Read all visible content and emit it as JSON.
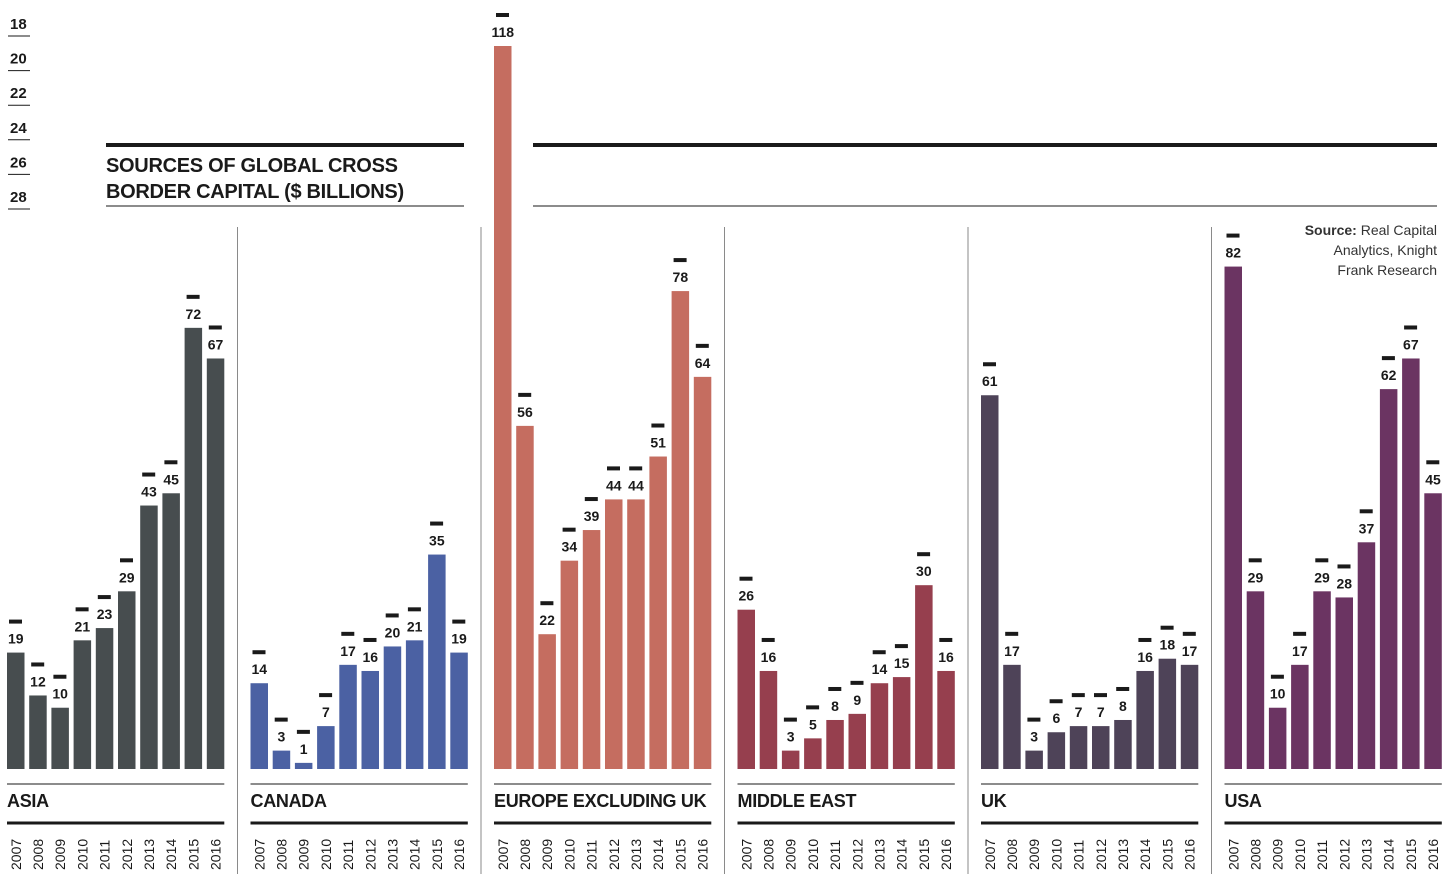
{
  "scale_labels": [
    "18",
    "20",
    "22",
    "24",
    "26",
    "28"
  ],
  "title_lines": [
    "SOURCES OF GLOBAL CROSS",
    "BORDER CAPITAL ($ BILLIONS)"
  ],
  "source": {
    "bold": "Source:",
    "lines": [
      "Real Capital",
      "Analytics, Knight",
      "Frank Research"
    ]
  },
  "chart_data": {
    "type": "bar",
    "title": "SOURCES OF GLOBAL CROSS BORDER CAPITAL ($ BILLIONS)",
    "unit": "$ billions",
    "categories": [
      "2007",
      "2008",
      "2009",
      "2010",
      "2011",
      "2012",
      "2013",
      "2014",
      "2015",
      "2016"
    ],
    "series": [
      {
        "name": "ASIA",
        "color": "#474d4f",
        "values": [
          19,
          12,
          10,
          21,
          23,
          29,
          43,
          45,
          72,
          67
        ]
      },
      {
        "name": "CANADA",
        "color": "#4b61a3",
        "values": [
          14,
          3,
          1,
          7,
          17,
          16,
          20,
          21,
          35,
          19
        ]
      },
      {
        "name": "EUROPE EXCLUDING UK",
        "color": "#c56d60",
        "values": [
          118,
          56,
          22,
          34,
          39,
          44,
          44,
          51,
          78,
          64
        ]
      },
      {
        "name": "MIDDLE EAST",
        "color": "#963f4e",
        "values": [
          26,
          16,
          3,
          5,
          8,
          9,
          14,
          15,
          30,
          16
        ]
      },
      {
        "name": "UK",
        "color": "#4e4358",
        "values": [
          61,
          17,
          3,
          6,
          7,
          7,
          8,
          16,
          18,
          17
        ]
      },
      {
        "name": "USA",
        "color": "#6b3462",
        "values": [
          82,
          29,
          10,
          17,
          29,
          28,
          37,
          62,
          67,
          45
        ]
      }
    ],
    "grid": false,
    "legend": "panel labels below each group"
  }
}
